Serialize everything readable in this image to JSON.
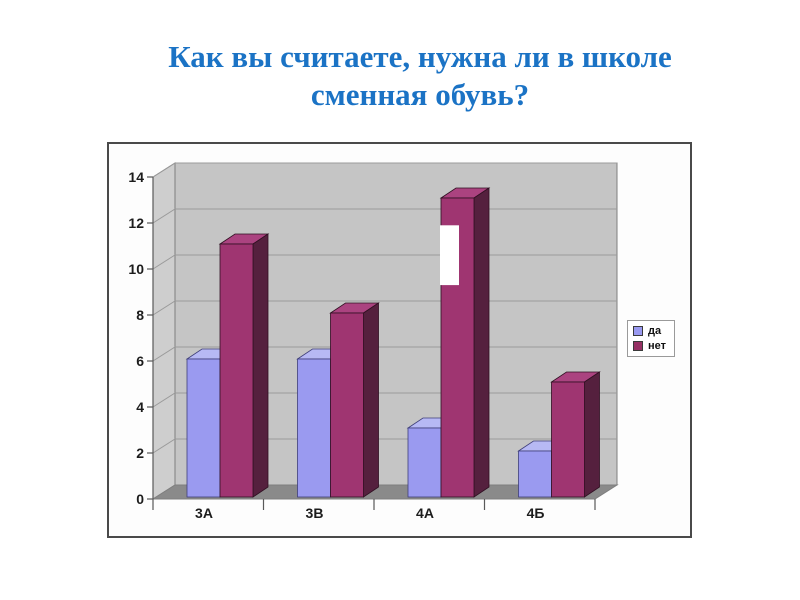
{
  "title": {
    "line1": "Как вы считаете, нужна ли в школе",
    "line2": "сменная обувь?",
    "color": "#1b73c5"
  },
  "chart_data": {
    "type": "bar",
    "subtype": "3d-column",
    "title": "Как вы считаете, нужна ли в школе сменная обувь?",
    "categories": [
      "3А",
      "3В",
      "4А",
      "4Б"
    ],
    "series": [
      {
        "name": "да",
        "values": [
          6,
          6,
          3,
          2
        ],
        "color": "#9a9af0",
        "color_top": "#b7b9f4",
        "color_side": "#6b6bc0",
        "color_stroke": "#3f3f7a",
        "legend_swatch": "#9999f0"
      },
      {
        "name": "нет",
        "values": [
          11,
          8,
          13,
          5
        ],
        "color": "#9f3571",
        "color_top": "#ab4380",
        "color_side": "#55203e",
        "color_stroke": "#301022",
        "legend_swatch": "#963064"
      }
    ],
    "xlabel": "",
    "ylabel": "",
    "ylim": [
      0,
      14
    ],
    "yticks": [
      0,
      2,
      4,
      6,
      8,
      10,
      12,
      14
    ],
    "grid": true,
    "legend_position": "right",
    "legend_labels": [
      "да",
      "нет"
    ],
    "walls_color": "#c5c5c5",
    "wall_side_color": "#cecece",
    "floor_color": "#8a8a8a",
    "grid_color": "#9a9a9a",
    "axis_color": "#595959",
    "label_color": "#1c1c1c",
    "artifact": {
      "description": "white rectangle patch covering part of the 4А 'нет' bar",
      "category_index": 2,
      "series_index": 1,
      "value_from": 9.3,
      "value_to": 11.9
    }
  }
}
